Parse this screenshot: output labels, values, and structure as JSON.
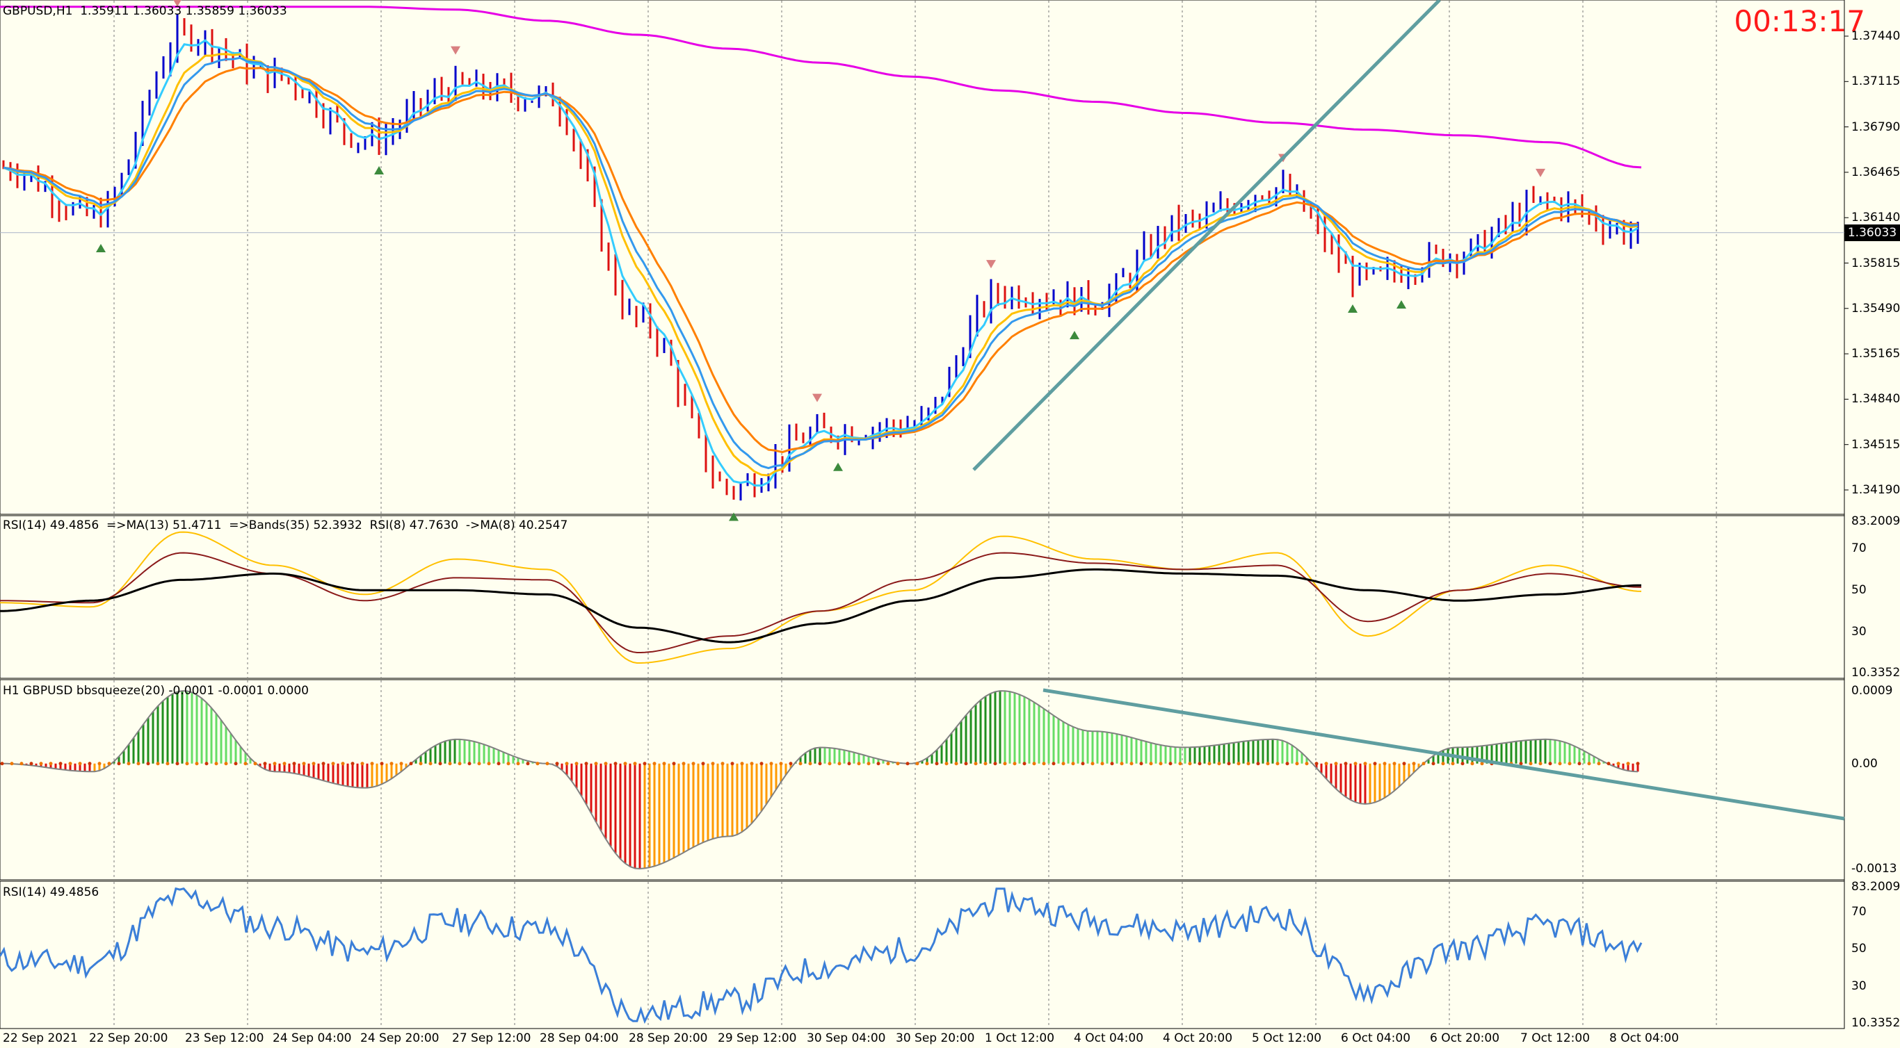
{
  "window": {
    "symbol_line": "GBPUSD,H1  1.35911 1.36033 1.35859 1.36033",
    "countdown": "00:13:17"
  },
  "price_pane": {
    "current_price": "1.36033",
    "axis_labels": [
      "1.37440",
      "1.37115",
      "1.36790",
      "1.36465",
      "1.36140",
      "1.35815",
      "1.35490",
      "1.35165",
      "1.34840",
      "1.34515",
      "1.34190"
    ],
    "axis_values": [
      1.3744,
      1.37115,
      1.3679,
      1.36465,
      1.3614,
      1.35815,
      1.3549,
      1.35165,
      1.3484,
      1.34515,
      1.3419
    ]
  },
  "rsi_multi_pane": {
    "header": "RSI(14) 49.4856  =>MA(13) 51.4711  =>Bands(35) 52.3932  RSI(8) 47.7630  ->MA(8) 40.2547",
    "axis_labels": [
      "83.2009",
      "70",
      "50",
      "30",
      "10.3352"
    ]
  },
  "squeeze_pane": {
    "header": "H1 GBPUSD bbsqueeze(20) -0.0001 -0.0001 0.0000",
    "axis_labels": [
      "0.0009",
      "0.00",
      "-0.0013"
    ]
  },
  "rsi_pane": {
    "header": "RSI(14) 49.4856",
    "axis_labels": [
      "83.2009",
      "70",
      "50",
      "30",
      "10.3352"
    ]
  },
  "time_axis": {
    "labels": [
      "22 Sep 2021",
      "22 Sep 20:00",
      "23 Sep 12:00",
      "24 Sep 04:00",
      "24 Sep 20:00",
      "27 Sep 12:00",
      "28 Sep 04:00",
      "28 Sep 20:00",
      "29 Sep 12:00",
      "30 Sep 04:00",
      "30 Sep 20:00",
      "1 Oct 12:00",
      "4 Oct 04:00",
      "4 Oct 20:00",
      "5 Oct 12:00",
      "6 Oct 04:00",
      "6 Oct 20:00",
      "7 Oct 12:00",
      "8 Oct 04:00"
    ]
  },
  "chart_data": {
    "type": "line",
    "symbol": "GBPUSD",
    "timeframe": "H1",
    "x": [
      "22 Sep 2021",
      "22 Sep 20:00",
      "23 Sep 12:00",
      "24 Sep 04:00",
      "24 Sep 20:00",
      "27 Sep 12:00",
      "28 Sep 04:00",
      "28 Sep 20:00",
      "29 Sep 12:00",
      "30 Sep 04:00",
      "30 Sep 20:00",
      "1 Oct 12:00",
      "4 Oct 04:00",
      "4 Oct 20:00",
      "5 Oct 12:00",
      "6 Oct 04:00",
      "6 Oct 20:00",
      "7 Oct 12:00",
      "8 Oct 04:00"
    ],
    "ylim": [
      1.34,
      1.3765
    ],
    "close": [
      1.365,
      1.3615,
      1.3745,
      1.3715,
      1.367,
      1.3708,
      1.37,
      1.354,
      1.342,
      1.346,
      1.3465,
      1.356,
      1.3555,
      1.361,
      1.3635,
      1.357,
      1.3588,
      1.3625,
      1.3603
    ],
    "long_ma": [
      1.3765,
      1.3765,
      1.3765,
      1.3765,
      1.3765,
      1.3763,
      1.3755,
      1.3745,
      1.3735,
      1.3725,
      1.3715,
      1.3705,
      1.3697,
      1.3689,
      1.3682,
      1.3677,
      1.3673,
      1.3668,
      1.365
    ],
    "rsi14": [
      44,
      42,
      78,
      62,
      48,
      65,
      60,
      15,
      22,
      40,
      50,
      76,
      65,
      60,
      68,
      28,
      50,
      62,
      49.4856
    ],
    "rsi_ma13": [
      45,
      44,
      68,
      58,
      45,
      56,
      55,
      20,
      28,
      40,
      55,
      68,
      63,
      60,
      62,
      35,
      50,
      58,
      51.4711
    ],
    "bands35": [
      40,
      45,
      55,
      58,
      50,
      50,
      48,
      32,
      25,
      34,
      45,
      56,
      60,
      58,
      57,
      50,
      45,
      48,
      52.3932
    ],
    "squeeze": [
      0.0,
      -0.0001,
      0.0009,
      -0.0001,
      -0.0003,
      0.0003,
      0.0,
      -0.0013,
      -0.0009,
      0.0002,
      0.0,
      0.0009,
      0.0004,
      0.0002,
      0.0003,
      -0.0005,
      0.0002,
      0.0003,
      -0.0001
    ],
    "rsi_axis": [
      10.3352,
      83.2009
    ],
    "squeeze_axis": [
      -0.0013,
      0.0009
    ],
    "colors": {
      "up_bar": "#0000cc",
      "down_bar": "#dd1111",
      "long_ma": "#e600e6",
      "fast_ma": "#33ccff",
      "mid_ma": "#3399ee",
      "slow_ma": "#ff8000",
      "ma_yellow": "#ffc000",
      "trendline": "#5f9ea0",
      "rsi": "#3b7fd8",
      "rsi_ma": "#8b1a1a",
      "bands": "#000000"
    },
    "grid": true
  }
}
